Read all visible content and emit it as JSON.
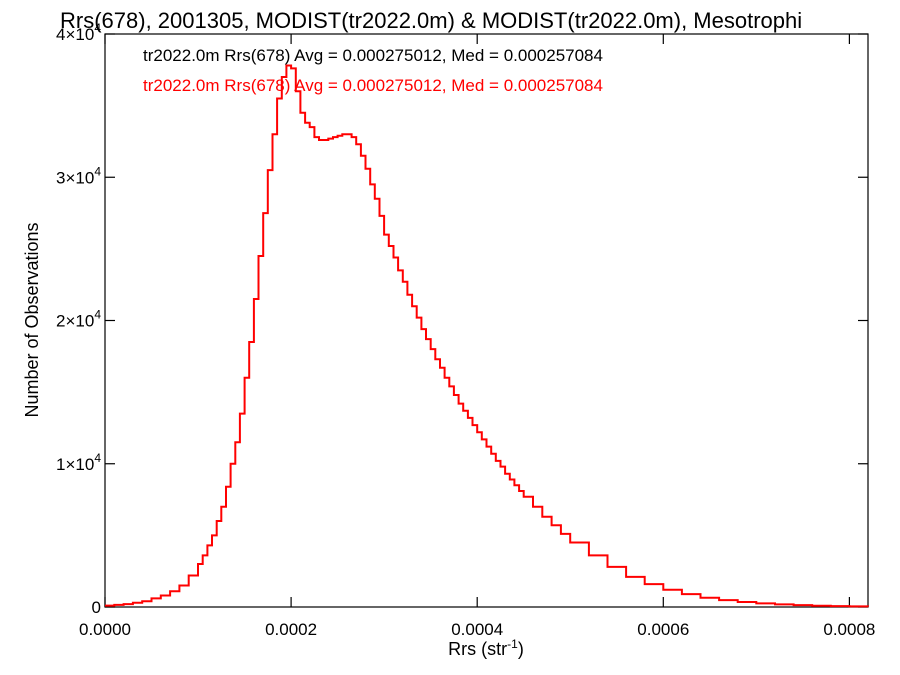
{
  "chart_data": {
    "type": "line",
    "style": "step",
    "title": "Rrs(678), 2001305, MODIST(tr2022.0m) & MODIST(tr2022.0m), Mesotrophi",
    "xlabel_main": "Rrs (str",
    "xlabel_sup": "-1",
    "xlabel_close": ")",
    "ylabel": "Number of Observations",
    "xlim": [
      0.0,
      0.00082
    ],
    "ylim": [
      0,
      40000
    ],
    "x_ticks": [
      {
        "value": 0.0,
        "label": "0.0000"
      },
      {
        "value": 0.0002,
        "label": "0.0002"
      },
      {
        "value": 0.0004,
        "label": "0.0004"
      },
      {
        "value": 0.0006,
        "label": "0.0006"
      },
      {
        "value": 0.0008,
        "label": "0.0008"
      }
    ],
    "y_ticks": [
      {
        "value": 0,
        "mant": "0",
        "exp": ""
      },
      {
        "value": 10000,
        "mant": "1×10",
        "exp": "4"
      },
      {
        "value": 20000,
        "mant": "2×10",
        "exp": "4"
      },
      {
        "value": 30000,
        "mant": "3×10",
        "exp": "4"
      },
      {
        "value": 40000,
        "mant": "4×10",
        "exp": "4"
      }
    ],
    "grid": false,
    "legend_position": "top-left",
    "legend": [
      {
        "text": "tr2022.0m Rrs(678) Avg = 0.000275012, Med = 0.000257084",
        "color": "#000000"
      },
      {
        "text": "tr2022.0m Rrs(678) Avg = 0.000275012, Med = 0.000257084",
        "color": "#ff0000"
      }
    ],
    "series": [
      {
        "color": "#ff0000",
        "x": [
          0.0,
          1e-05,
          2e-05,
          3e-05,
          4e-05,
          5e-05,
          6e-05,
          7e-05,
          8e-05,
          9e-05,
          0.0001,
          0.000105,
          0.00011,
          0.000115,
          0.00012,
          0.000125,
          0.00013,
          0.000135,
          0.00014,
          0.000145,
          0.00015,
          0.000155,
          0.00016,
          0.000165,
          0.00017,
          0.000175,
          0.00018,
          0.000185,
          0.00019,
          0.000195,
          0.0002,
          0.000205,
          0.00021,
          0.000215,
          0.00022,
          0.000225,
          0.00023,
          0.000235,
          0.00024,
          0.000245,
          0.00025,
          0.000255,
          0.00026,
          0.000265,
          0.00027,
          0.000275,
          0.00028,
          0.000285,
          0.00029,
          0.000295,
          0.0003,
          0.000305,
          0.00031,
          0.000315,
          0.00032,
          0.000325,
          0.00033,
          0.000335,
          0.00034,
          0.000345,
          0.00035,
          0.000355,
          0.00036,
          0.000365,
          0.00037,
          0.000375,
          0.00038,
          0.000385,
          0.00039,
          0.000395,
          0.0004,
          0.000405,
          0.00041,
          0.000415,
          0.00042,
          0.000425,
          0.00043,
          0.000435,
          0.00044,
          0.000445,
          0.00045,
          0.00046,
          0.00047,
          0.00048,
          0.00049,
          0.0005,
          0.00052,
          0.00054,
          0.00056,
          0.00058,
          0.0006,
          0.00062,
          0.00064,
          0.00066,
          0.00068,
          0.0007,
          0.00072,
          0.00074,
          0.00076,
          0.00078,
          0.0008,
          0.00082
        ],
        "y": [
          100,
          150,
          200,
          300,
          400,
          600,
          800,
          1100,
          1500,
          2200,
          3000,
          3600,
          4300,
          5000,
          6000,
          7000,
          8400,
          10000,
          11500,
          13500,
          16000,
          18500,
          21500,
          24500,
          27500,
          30500,
          33000,
          35500,
          37000,
          37800,
          37600,
          36000,
          34500,
          33800,
          33500,
          32800,
          32600,
          32600,
          32700,
          32800,
          32900,
          33000,
          33000,
          32800,
          32300,
          31500,
          30600,
          29500,
          28500,
          27300,
          26000,
          25200,
          24400,
          23500,
          22700,
          21800,
          21000,
          20200,
          19400,
          18700,
          18000,
          17300,
          16700,
          16000,
          15400,
          14800,
          14200,
          13700,
          13200,
          12700,
          12200,
          11700,
          11200,
          10700,
          10200,
          9800,
          9300,
          8900,
          8500,
          8100,
          7700,
          7000,
          6300,
          5700,
          5100,
          4500,
          3600,
          2800,
          2100,
          1600,
          1200,
          900,
          650,
          480,
          350,
          250,
          180,
          130,
          90,
          60,
          40,
          30
        ]
      }
    ]
  }
}
